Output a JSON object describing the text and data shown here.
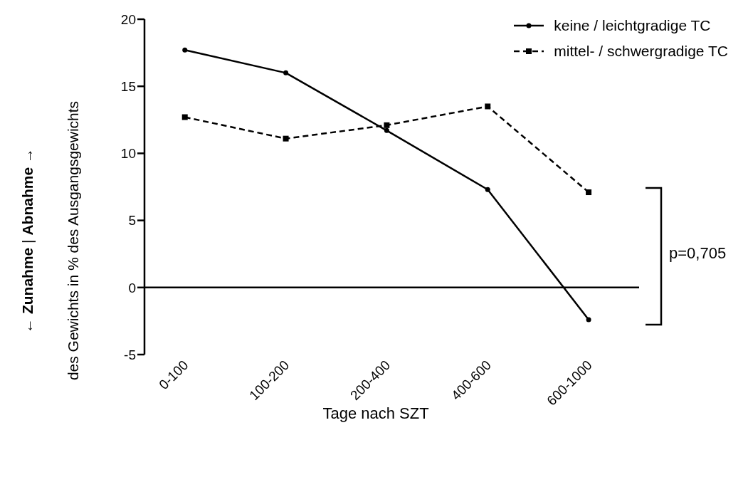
{
  "chart_data": {
    "type": "line",
    "ylabel": "← Zunahme | Abnahme →\ndes Gewichts in % des Ausgangsgewichts",
    "xlabel": "Tage nach SZT",
    "categories": [
      "0-100",
      "100-200",
      "200-400",
      "400-600",
      "600-1000"
    ],
    "series": [
      {
        "name": "keine / leichtgradige TC",
        "color": "#000000",
        "marker": "circle",
        "line_style": "solid",
        "values": [
          17.7,
          16.0,
          11.7,
          7.3,
          -2.4
        ]
      },
      {
        "name": "mittel- / schwergradige TC",
        "color": "#000000",
        "marker": "square",
        "line_style": "dashed",
        "values": [
          12.7,
          11.1,
          12.1,
          13.5,
          7.1
        ]
      }
    ],
    "ylim": [
      -5,
      20
    ],
    "yticks": [
      -5,
      0,
      5,
      10,
      15,
      20
    ],
    "ref_lines": [
      {
        "axis": "y",
        "value": 0
      }
    ],
    "legend": "top right",
    "annotations": [
      "p=0,705"
    ]
  }
}
